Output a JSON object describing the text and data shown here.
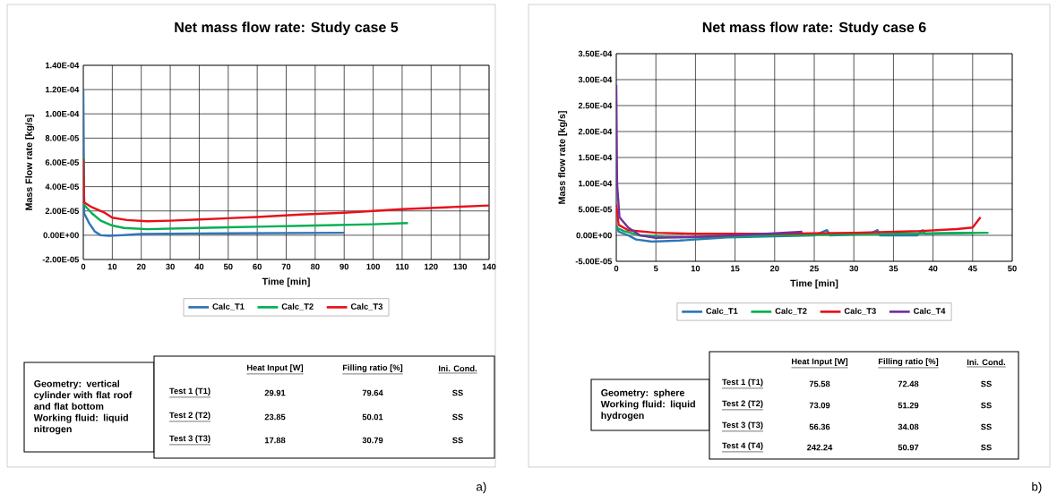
{
  "chart_data": [
    {
      "type": "line",
      "title": "Net mass flow rate: Study case 5",
      "xlabel": "Time [min]",
      "ylabel": "Mass Flow rate [kg/s]",
      "xlim": [
        0,
        140
      ],
      "xticks": [
        0,
        10,
        20,
        30,
        40,
        50,
        60,
        70,
        80,
        90,
        100,
        110,
        120,
        130,
        140
      ],
      "ylim": [
        -2e-05,
        0.00014
      ],
      "yticks": [
        {
          "value": -2e-05,
          "label": "-2.00E-05"
        },
        {
          "value": 0,
          "label": "0.00E+00"
        },
        {
          "value": 2e-05,
          "label": "2.00E-05"
        },
        {
          "value": 4e-05,
          "label": "4.00E-05"
        },
        {
          "value": 6e-05,
          "label": "6.00E-05"
        },
        {
          "value": 8e-05,
          "label": "8.00E-05"
        },
        {
          "value": 0.0001,
          "label": "1.00E-04"
        },
        {
          "value": 0.00012,
          "label": "1.20E-04"
        },
        {
          "value": 0.00014,
          "label": "1.40E-04"
        }
      ],
      "grid": true,
      "legend": "bottom",
      "series": [
        {
          "name": "Calc_T1",
          "color": "#2e75b6",
          "x": [
            0,
            0.3,
            2,
            4,
            6,
            9,
            13,
            20,
            40,
            90
          ],
          "values": [
            0.00012,
            1.8e-05,
            1e-05,
            3e-06,
            0,
            -5e-07,
            0,
            1e-06,
            1.5e-06,
            2e-06
          ]
        },
        {
          "name": "Calc_T2",
          "color": "#00b050",
          "x": [
            0,
            0.3,
            3,
            6,
            10,
            14,
            22,
            40,
            60,
            80,
            100,
            112
          ],
          "values": [
            6.5e-05,
            2.5e-05,
            1.8e-05,
            1.2e-05,
            8e-06,
            6e-06,
            5e-06,
            6e-06,
            7e-06,
            8e-06,
            9e-06,
            1e-05
          ]
        },
        {
          "name": "Calc_T3",
          "color": "#e8101a",
          "x": [
            0,
            0.3,
            3,
            7,
            10,
            15,
            22,
            30,
            40,
            60,
            75,
            90,
            100,
            110,
            125,
            140
          ],
          "values": [
            6.3e-05,
            2.7e-05,
            2.3e-05,
            1.9e-05,
            1.45e-05,
            1.25e-05,
            1.15e-05,
            1.2e-05,
            1.3e-05,
            1.5e-05,
            1.7e-05,
            1.85e-05,
            2e-05,
            2.15e-05,
            2.3e-05,
            2.45e-05
          ]
        }
      ],
      "annotations": [
        "a)",
        "Geometry: vertical cylinder with flat roof and flat bottom",
        "Working fluid: liquid nitrogen",
        "Heat Input [W]",
        "Filling ratio [%]",
        "Ini. Cond.",
        "Test 1 (T1)",
        "29.91",
        "79.64",
        "SS",
        "Test 2 (T2)",
        "23.85",
        "50.01",
        "SS",
        "Test 3 (T3)",
        "17.88",
        "30.79",
        "SS"
      ]
    },
    {
      "type": "line",
      "title": "Net mass flow rate: Study case 6",
      "xlabel": "Time [min]",
      "ylabel": "Mass flow rate [kg/s]",
      "xlim": [
        0,
        50
      ],
      "xticks": [
        0,
        5,
        10,
        15,
        20,
        25,
        30,
        35,
        40,
        45,
        50
      ],
      "ylim": [
        -5e-05,
        0.00035
      ],
      "yticks": [
        {
          "value": -5e-05,
          "label": "-5.00E-05"
        },
        {
          "value": 0,
          "label": "0.00E+00"
        },
        {
          "value": 5e-05,
          "label": "5.00E-05"
        },
        {
          "value": 0.0001,
          "label": "1.00E-04"
        },
        {
          "value": 0.00015,
          "label": "1.50E-04"
        },
        {
          "value": 0.0002,
          "label": "2.00E-04"
        },
        {
          "value": 0.00025,
          "label": "2.50E-04"
        },
        {
          "value": 0.0003,
          "label": "3.00E-04"
        },
        {
          "value": 0.00035,
          "label": "3.50E-04"
        }
      ],
      "grid": true,
      "legend": "bottom",
      "series": [
        {
          "name": "Calc_T1",
          "color": "#2e75b6",
          "x": [
            0,
            0.3,
            1.5,
            2.5,
            4.5,
            8,
            10,
            14,
            20,
            25,
            26.6,
            27,
            32,
            33,
            33.3,
            38,
            38.7,
            39,
            45
          ],
          "values": [
            2e-05,
            7e-06,
            0,
            -8e-06,
            -1.2e-05,
            -1e-05,
            -8e-06,
            -4e-06,
            -2e-06,
            0,
            1e-05,
            0,
            3e-06,
            1e-05,
            0,
            0,
            1e-05,
            3e-06,
            5e-06
          ]
        },
        {
          "name": "Calc_T2",
          "color": "#00b050",
          "x": [
            0,
            1,
            3,
            6,
            10,
            15,
            20,
            30,
            40,
            47
          ],
          "values": [
            1.5e-05,
            8e-06,
            0,
            -3e-06,
            -4e-06,
            -2e-06,
            0,
            2e-06,
            4e-06,
            5e-06
          ]
        },
        {
          "name": "Calc_T3",
          "color": "#e8101a",
          "x": [
            0,
            0.3,
            1.5,
            5,
            10,
            20,
            30,
            38,
            43,
            45,
            46
          ],
          "values": [
            6e-05,
            2e-05,
            1e-05,
            5e-06,
            3e-06,
            3e-06,
            5e-06,
            8e-06,
            1.2e-05,
            1.5e-05,
            3.5e-05
          ]
        },
        {
          "name": "Calc_T4",
          "color": "#7030a0",
          "x": [
            0,
            0.1,
            0.4,
            1.5,
            3,
            5,
            10,
            15,
            20,
            23.5
          ],
          "values": [
            0.00029,
            0.0001,
            3.5e-05,
            1.5e-05,
            0,
            -5e-06,
            -3e-06,
            0,
            4e-06,
            7e-06
          ]
        }
      ],
      "annotations": [
        "b)",
        "Geometry: sphere",
        "Working fluid: liquid hydrogen",
        "Heat Input [W]",
        "Filling ratio [%]",
        "Ini. Cond.",
        "Test 1 (T1)",
        "75.58",
        "72.48",
        "SS",
        "Test 2 (T2)",
        "73.09",
        "51.29",
        "SS",
        "Test 3 (T3)",
        "56.36",
        "34.08",
        "SS",
        "Test 4 (T4)",
        "242.24",
        "50.97",
        "SS"
      ]
    }
  ]
}
